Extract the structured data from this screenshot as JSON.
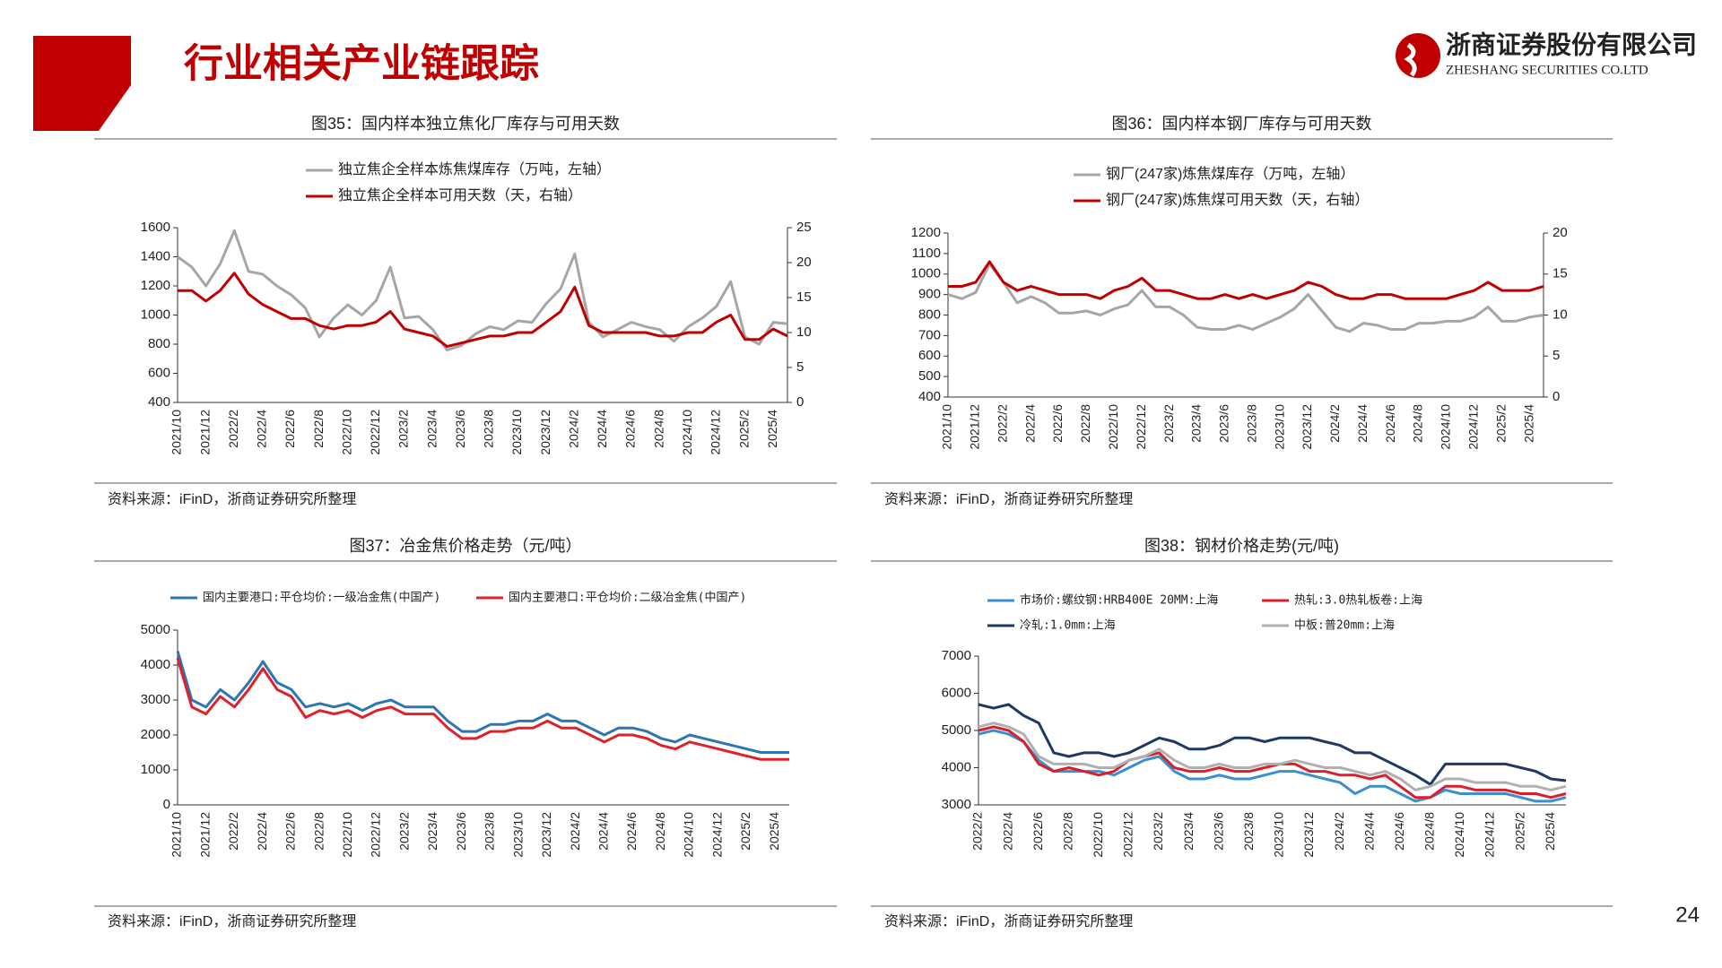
{
  "header": {
    "title": "行业相关产业链跟踪"
  },
  "logo": {
    "name": "浙商证券股份有限公司",
    "name_en": "ZHESHANG SECURITIES CO.LTD"
  },
  "page_number": "24",
  "chart_data": [
    {
      "type": "line",
      "title": "图35：国内样本独立焦化厂库存与可用天数",
      "source": "资料来源：iFinD，浙商证券研究所整理",
      "categories": [
        "2021/10",
        null,
        "2021/12",
        null,
        "2022/2",
        null,
        "2022/4",
        null,
        "2022/6",
        null,
        "2022/8",
        null,
        "2022/10",
        null,
        "2022/12",
        null,
        "2023/2",
        null,
        "2023/4",
        null,
        "2023/6",
        null,
        "2023/8",
        null,
        "2023/10",
        null,
        "2023/12",
        null,
        "2024/2",
        null,
        "2024/4",
        null,
        "2024/6",
        null,
        "2024/8",
        null,
        "2024/10",
        null,
        "2024/12",
        null,
        "2025/2",
        null,
        "2025/4",
        null
      ],
      "ylim": [
        400,
        1600
      ],
      "yticks": [
        400,
        600,
        800,
        1000,
        1200,
        1400,
        1600
      ],
      "y2lim": [
        0,
        25
      ],
      "y2ticks": [
        0,
        5,
        10,
        15,
        20,
        25
      ],
      "series": [
        {
          "name": "独立焦企全样本炼焦煤库存（万吨，左轴）",
          "color": "#a6a6a6",
          "values": [
            1400,
            1330,
            1200,
            1350,
            1580,
            1300,
            1280,
            1200,
            1140,
            1050,
            850,
            980,
            1070,
            1000,
            1100,
            1330,
            980,
            990,
            900,
            760,
            790,
            870,
            920,
            900,
            960,
            950,
            1080,
            1180,
            1420,
            950,
            850,
            900,
            950,
            920,
            900,
            820,
            920,
            980,
            1060,
            1230,
            850,
            800,
            950,
            940
          ]
        },
        {
          "name": "独立焦企全样本可用天数（天，右轴）",
          "color": "#c00000",
          "axis": "y2",
          "values": [
            16,
            16,
            14.5,
            16,
            18.5,
            15.5,
            14,
            13,
            12,
            12,
            11,
            10.5,
            11,
            11,
            11.5,
            13,
            10.5,
            10,
            9.5,
            8,
            8.5,
            9,
            9.5,
            9.5,
            10,
            10,
            11.5,
            13,
            16.5,
            11,
            10,
            10,
            10,
            10,
            9.5,
            9.5,
            10,
            10,
            11.5,
            12.5,
            9,
            9,
            10.5,
            9.5
          ]
        }
      ]
    },
    {
      "type": "line",
      "title": "图36：国内样本钢厂库存与可用天数",
      "source": "资料来源：iFinD，浙商证券研究所整理",
      "categories": [
        "2021/10",
        null,
        "2021/12",
        null,
        "2022/2",
        null,
        "2022/4",
        null,
        "2022/6",
        null,
        "2022/8",
        null,
        "2022/10",
        null,
        "2022/12",
        null,
        "2023/2",
        null,
        "2023/4",
        null,
        "2023/6",
        null,
        "2023/8",
        null,
        "2023/10",
        null,
        "2023/12",
        null,
        "2024/2",
        null,
        "2024/4",
        null,
        "2024/6",
        null,
        "2024/8",
        null,
        "2024/10",
        null,
        "2024/12",
        null,
        "2025/2",
        null,
        "2025/4",
        null
      ],
      "ylim": [
        400,
        1200
      ],
      "yticks": [
        400,
        500,
        600,
        700,
        800,
        900,
        1000,
        1100,
        1200
      ],
      "y2lim": [
        0,
        20
      ],
      "y2ticks": [
        0,
        5,
        10,
        15,
        20
      ],
      "series": [
        {
          "name": "钢厂(247家)炼焦煤库存（万吨，左轴）",
          "color": "#a6a6a6",
          "values": [
            900,
            880,
            910,
            1050,
            960,
            860,
            890,
            860,
            810,
            810,
            820,
            800,
            830,
            850,
            920,
            840,
            840,
            800,
            740,
            730,
            730,
            750,
            730,
            760,
            790,
            830,
            900,
            820,
            740,
            720,
            760,
            750,
            730,
            730,
            760,
            760,
            770,
            770,
            790,
            840,
            770,
            770,
            790,
            800
          ]
        },
        {
          "name": "钢厂(247家)炼焦煤可用天数（天，右轴）",
          "color": "#c00000",
          "axis": "y2",
          "values": [
            13.5,
            13.5,
            14,
            16.5,
            14,
            13,
            13.5,
            13,
            12.5,
            12.5,
            12.5,
            12,
            13,
            13.5,
            14.5,
            13,
            13,
            12.5,
            12,
            12,
            12.5,
            12,
            12.5,
            12,
            12.5,
            13,
            14,
            13.5,
            12.5,
            12,
            12,
            12.5,
            12.5,
            12,
            12,
            12,
            12,
            12.5,
            13,
            14,
            13,
            13,
            13,
            13.5
          ]
        }
      ]
    },
    {
      "type": "line",
      "title": "图37：冶金焦价格走势（元/吨）",
      "source": "资料来源：iFinD，浙商证券研究所整理",
      "categories": [
        "2021/10",
        null,
        "2021/12",
        null,
        "2022/2",
        null,
        "2022/4",
        null,
        "2022/6",
        null,
        "2022/8",
        null,
        "2022/10",
        null,
        "2022/12",
        null,
        "2023/2",
        null,
        "2023/4",
        null,
        "2023/6",
        null,
        "2023/8",
        null,
        "2023/10",
        null,
        "2023/12",
        null,
        "2024/2",
        null,
        "2024/4",
        null,
        "2024/6",
        null,
        "2024/8",
        null,
        "2024/10",
        null,
        "2024/12",
        null,
        "2025/2",
        null,
        "2025/4",
        null
      ],
      "ylim": [
        0,
        5000
      ],
      "yticks": [
        0,
        1000,
        2000,
        3000,
        4000,
        5000
      ],
      "series": [
        {
          "name": "国内主要港口:平仓均价:一级冶金焦(中国产)",
          "color": "#2e75b6",
          "values": [
            4400,
            3000,
            2800,
            3300,
            3000,
            3500,
            4100,
            3500,
            3300,
            2800,
            2900,
            2800,
            2900,
            2700,
            2900,
            3000,
            2800,
            2800,
            2800,
            2400,
            2100,
            2100,
            2300,
            2300,
            2400,
            2400,
            2600,
            2400,
            2400,
            2200,
            2000,
            2200,
            2200,
            2100,
            1900,
            1800,
            2000,
            1900,
            1800,
            1700,
            1600,
            1500,
            1500,
            1500
          ]
        },
        {
          "name": "国内主要港口:平仓均价:二级冶金焦(中国产)",
          "color": "#e0202a",
          "values": [
            4200,
            2800,
            2600,
            3100,
            2800,
            3300,
            3900,
            3300,
            3100,
            2500,
            2700,
            2600,
            2700,
            2500,
            2700,
            2800,
            2600,
            2600,
            2600,
            2200,
            1900,
            1900,
            2100,
            2100,
            2200,
            2200,
            2400,
            2200,
            2200,
            2000,
            1800,
            2000,
            2000,
            1900,
            1700,
            1600,
            1800,
            1700,
            1600,
            1500,
            1400,
            1300,
            1300,
            1300
          ]
        }
      ]
    },
    {
      "type": "line",
      "title": "图38：钢材价格走势(元/吨)",
      "source": "资料来源：iFinD，浙商证券研究所整理",
      "categories": [
        "2022/2",
        null,
        "2022/4",
        null,
        "2022/6",
        null,
        "2022/8",
        null,
        "2022/10",
        null,
        "2022/12",
        null,
        "2023/2",
        null,
        "2023/4",
        null,
        "2023/6",
        null,
        "2023/8",
        null,
        "2023/10",
        null,
        "2023/12",
        null,
        "2024/2",
        null,
        "2024/4",
        null,
        "2024/6",
        null,
        "2024/8",
        null,
        "2024/10",
        null,
        "2024/12",
        null,
        "2025/2",
        null,
        "2025/4",
        null
      ],
      "ylim": [
        3000,
        7000
      ],
      "yticks": [
        3000,
        4000,
        5000,
        6000,
        7000
      ],
      "series": [
        {
          "name": "市场价:螺纹钢:HRB400E 20MM:上海",
          "color": "#3a8fd0",
          "values": [
            4900,
            5000,
            4900,
            4700,
            4200,
            3900,
            3900,
            3900,
            3900,
            3800,
            4000,
            4200,
            4300,
            3900,
            3700,
            3700,
            3800,
            3700,
            3700,
            3800,
            3900,
            3900,
            3800,
            3700,
            3600,
            3300,
            3500,
            3500,
            3300,
            3100,
            3200,
            3400,
            3300,
            3300,
            3300,
            3300,
            3200,
            3100,
            3100,
            3200
          ]
        },
        {
          "name": "热轧:3.0热轧板卷:上海",
          "color": "#d9202a",
          "values": [
            5000,
            5100,
            5000,
            4700,
            4100,
            3900,
            4000,
            3900,
            3800,
            3900,
            4200,
            4300,
            4400,
            4000,
            3900,
            3900,
            4000,
            3900,
            3900,
            4000,
            4100,
            4100,
            3900,
            3900,
            3800,
            3800,
            3700,
            3800,
            3500,
            3200,
            3200,
            3500,
            3500,
            3400,
            3400,
            3400,
            3300,
            3300,
            3200,
            3300
          ]
        },
        {
          "name": "冷轧:1.0mm:上海",
          "color": "#1f3864",
          "values": [
            5700,
            5600,
            5700,
            5400,
            5200,
            4400,
            4300,
            4400,
            4400,
            4300,
            4400,
            4600,
            4800,
            4700,
            4500,
            4500,
            4600,
            4800,
            4800,
            4700,
            4800,
            4800,
            4800,
            4700,
            4600,
            4400,
            4400,
            4200,
            4000,
            3800,
            3550,
            4100,
            4100,
            4100,
            4100,
            4100,
            4000,
            3900,
            3700,
            3650
          ]
        },
        {
          "name": "中板:普20mm:上海",
          "color": "#b0b0b0",
          "values": [
            5100,
            5200,
            5100,
            4900,
            4300,
            4100,
            4100,
            4100,
            4000,
            4000,
            4200,
            4300,
            4500,
            4200,
            4000,
            4000,
            4100,
            4000,
            4000,
            4100,
            4100,
            4200,
            4100,
            4000,
            4000,
            3900,
            3800,
            3900,
            3700,
            3400,
            3500,
            3700,
            3700,
            3600,
            3600,
            3600,
            3500,
            3500,
            3400,
            3500
          ]
        }
      ]
    }
  ]
}
